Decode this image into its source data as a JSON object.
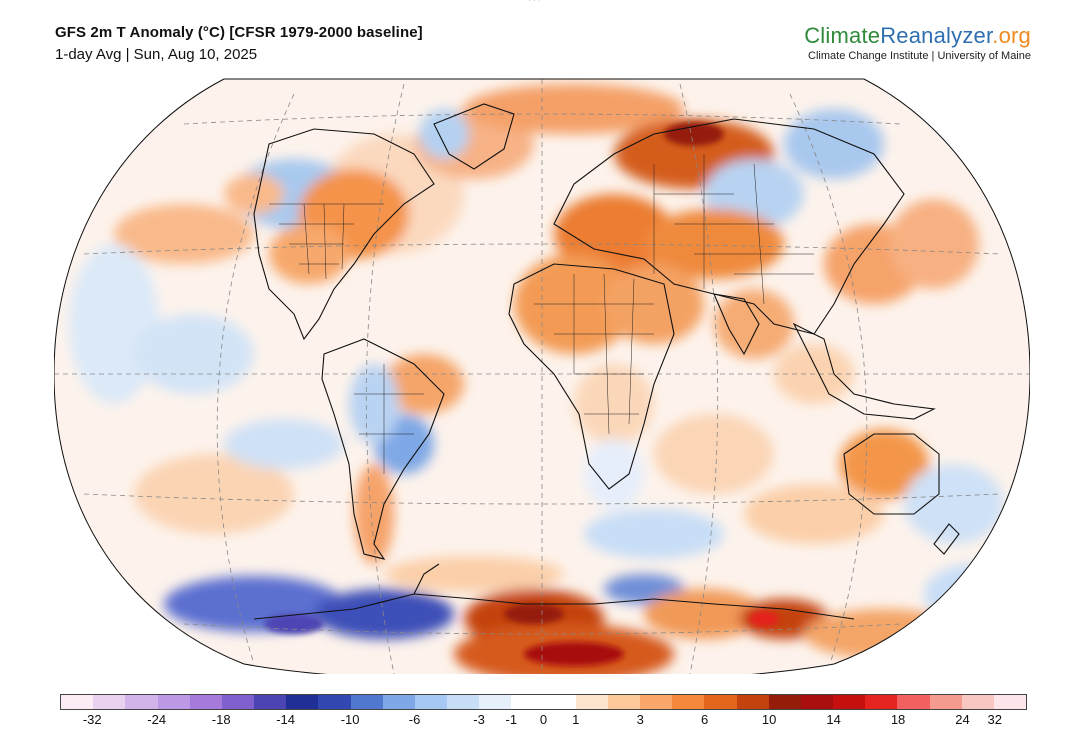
{
  "header": {
    "title": "GFS 2m T Anomaly (°C) [CFSR 1979-2000 baseline]",
    "subtitle": "1-day Avg | Sun, Aug 10, 2025",
    "top_stub": "· · ·"
  },
  "brand": {
    "name_part1": "Climate",
    "name_part2": "Reanalyzer",
    "name_part3": ".org",
    "tagline": "Climate Change Institute | University of Maine",
    "color_climate": "#2f8a3a",
    "color_reanalyzer": "#2f6fb0",
    "color_org": "#f08a1f"
  },
  "map": {
    "projection": "Winkel Tripel",
    "variable": "2m temperature anomaly",
    "units": "°C"
  },
  "legend": {
    "colors": [
      "#fcecf6",
      "#e8d2ef",
      "#d2b4ea",
      "#bd98e4",
      "#a57ada",
      "#8060cc",
      "#4d44b3",
      "#1f2f95",
      "#3347b2",
      "#5078cf",
      "#7fa8e6",
      "#a6c8f2",
      "#c8def7",
      "#e6f0fb",
      "#ffffff",
      "#ffffff",
      "#fde4cc",
      "#fcc79a",
      "#fba66a",
      "#f6883c",
      "#e4661c",
      "#c4420e",
      "#951c08",
      "#a80e0d",
      "#c60f0f",
      "#e5241f",
      "#f36060",
      "#f49a8e",
      "#f9c7c1",
      "#fde6ea"
    ],
    "tick_values": [
      -32,
      -24,
      -18,
      -14,
      -10,
      -6,
      -3,
      -1,
      0,
      1,
      3,
      6,
      10,
      14,
      18,
      24,
      32
    ],
    "tick_labels": [
      "-32",
      "-24",
      "-18",
      "-14",
      "-10",
      "-6",
      "-3",
      "-1",
      "0",
      "1",
      "3",
      "6",
      "10",
      "14",
      "18",
      "24",
      "32"
    ]
  }
}
